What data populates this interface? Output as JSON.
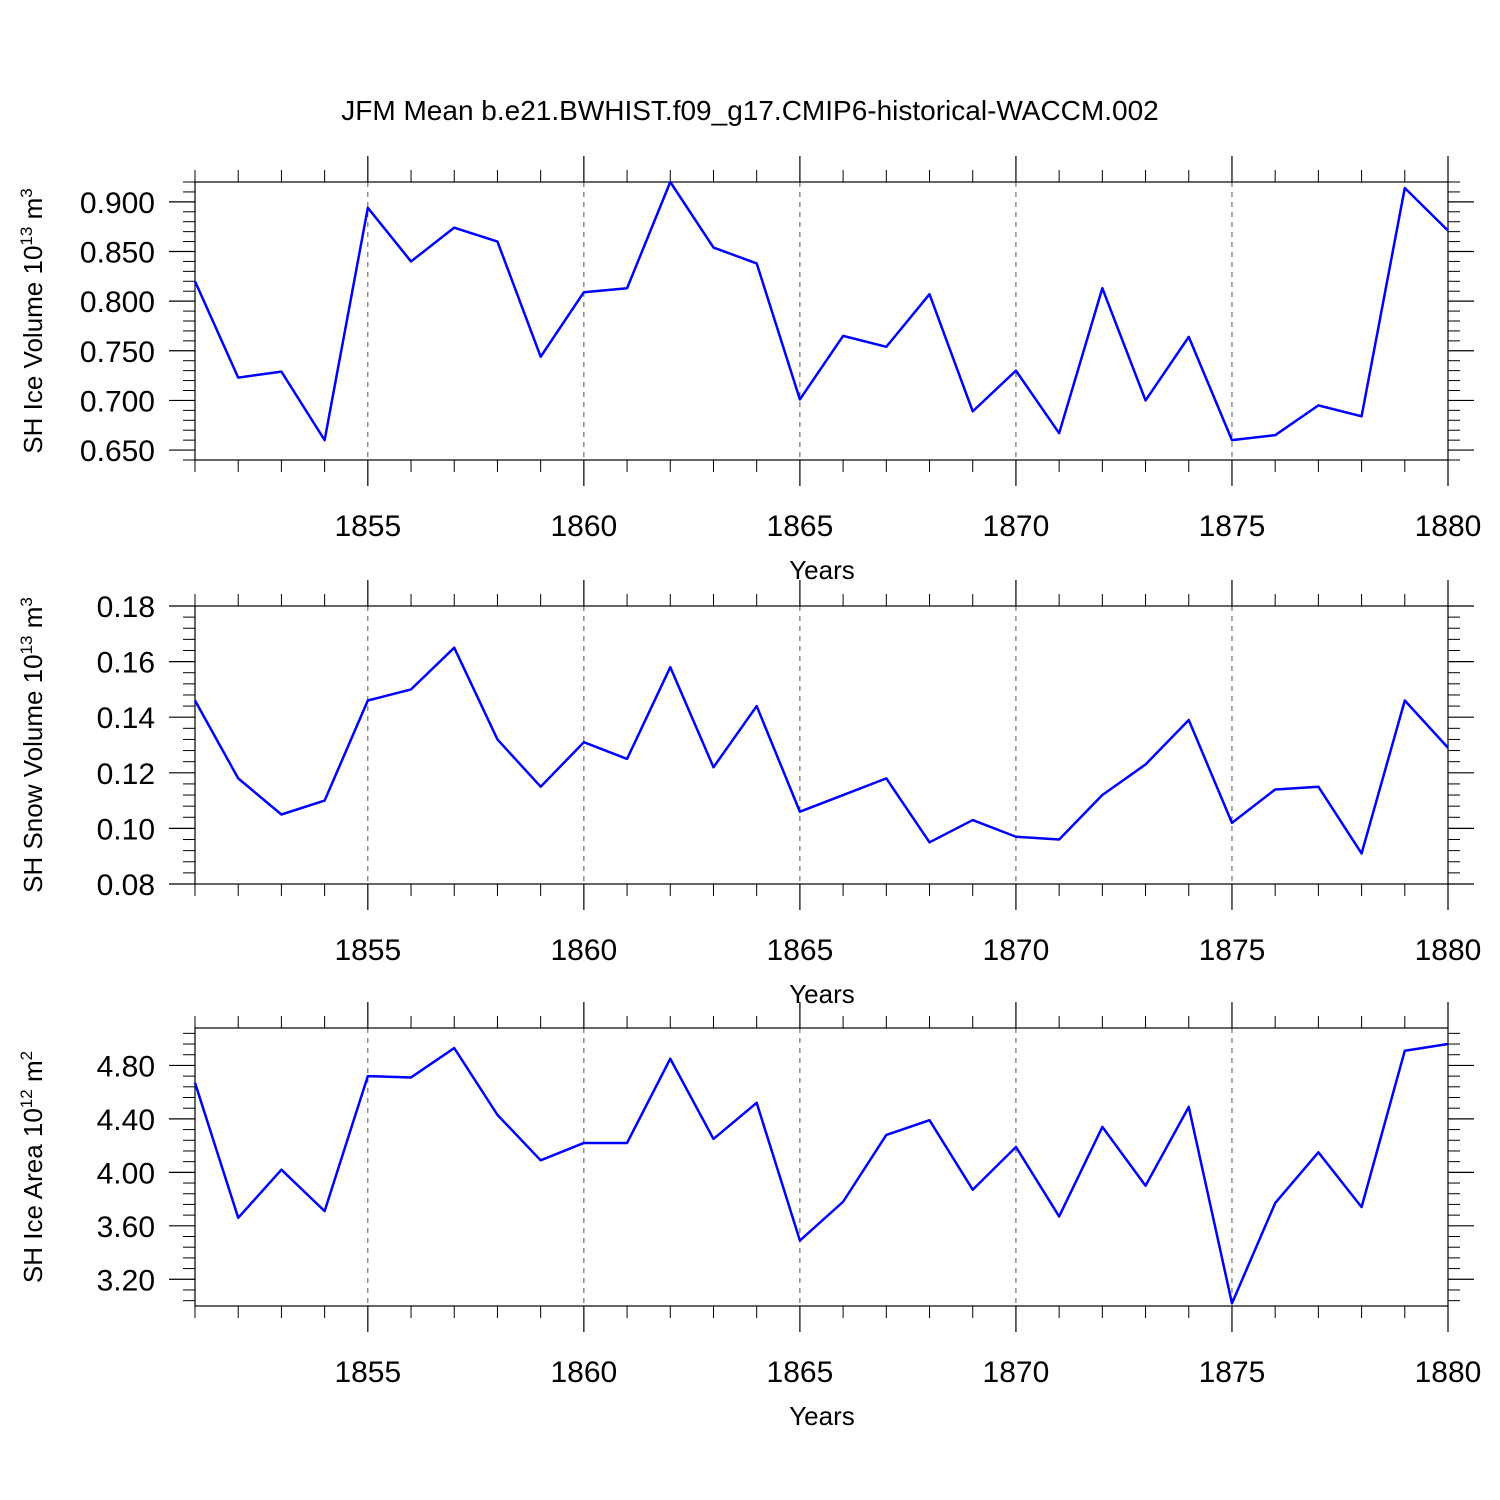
{
  "title": "JFM Mean b.e21.BWHIST.f09_g17.CMIP6-historical-WACCM.002",
  "chart_data": [
    {
      "type": "line",
      "ylabel_main": "SH Ice Volume 10",
      "ylabel_exp": "13",
      "ylabel_unit": " m",
      "ylabel_unit_exp": "3",
      "xlabel": "Years",
      "xlim": [
        1851,
        1880
      ],
      "ylim": [
        0.64,
        0.92
      ],
      "y_ticks": [
        "0.650",
        "0.700",
        "0.750",
        "0.800",
        "0.850",
        "0.900"
      ],
      "y_tick_values": [
        0.65,
        0.7,
        0.75,
        0.8,
        0.85,
        0.9
      ],
      "y_minor_step": 0.01,
      "x_ticks": [
        "1855",
        "1860",
        "1865",
        "1870",
        "1875",
        "1880"
      ],
      "x_tick_values": [
        1855,
        1860,
        1865,
        1870,
        1875,
        1880
      ],
      "grid_x": [
        1855,
        1860,
        1865,
        1870,
        1875
      ],
      "color": "#0000ff",
      "x": [
        1851,
        1852,
        1853,
        1854,
        1855,
        1856,
        1857,
        1858,
        1859,
        1860,
        1861,
        1862,
        1863,
        1864,
        1865,
        1866,
        1867,
        1868,
        1869,
        1870,
        1871,
        1872,
        1873,
        1874,
        1875,
        1876,
        1877,
        1878,
        1879,
        1880
      ],
      "values": [
        0.82,
        0.723,
        0.729,
        0.66,
        0.894,
        0.84,
        0.874,
        0.86,
        0.744,
        0.809,
        0.813,
        0.92,
        0.854,
        0.838,
        0.701,
        0.765,
        0.754,
        0.807,
        0.689,
        0.73,
        0.667,
        0.813,
        0.7,
        0.764,
        0.66,
        0.665,
        0.695,
        0.684,
        0.914,
        0.871
      ]
    },
    {
      "type": "line",
      "ylabel_main": "SH Snow Volume 10",
      "ylabel_exp": "13",
      "ylabel_unit": " m",
      "ylabel_unit_exp": "3",
      "xlabel": "Years",
      "xlim": [
        1851,
        1880
      ],
      "ylim": [
        0.08,
        0.18
      ],
      "y_ticks": [
        "0.08",
        "0.10",
        "0.12",
        "0.14",
        "0.16",
        "0.18"
      ],
      "y_tick_values": [
        0.08,
        0.1,
        0.12,
        0.14,
        0.16,
        0.18
      ],
      "y_minor_step": 0.004,
      "x_ticks": [
        "1855",
        "1860",
        "1865",
        "1870",
        "1875",
        "1880"
      ],
      "x_tick_values": [
        1855,
        1860,
        1865,
        1870,
        1875,
        1880
      ],
      "grid_x": [
        1855,
        1860,
        1865,
        1870,
        1875
      ],
      "color": "#0000ff",
      "x": [
        1851,
        1852,
        1853,
        1854,
        1855,
        1856,
        1857,
        1858,
        1859,
        1860,
        1861,
        1862,
        1863,
        1864,
        1865,
        1866,
        1867,
        1868,
        1869,
        1870,
        1871,
        1872,
        1873,
        1874,
        1875,
        1876,
        1877,
        1878,
        1879,
        1880
      ],
      "values": [
        0.146,
        0.118,
        0.105,
        0.11,
        0.146,
        0.15,
        0.165,
        0.132,
        0.115,
        0.131,
        0.125,
        0.158,
        0.122,
        0.144,
        0.106,
        0.112,
        0.118,
        0.095,
        0.103,
        0.097,
        0.096,
        0.112,
        0.123,
        0.139,
        0.102,
        0.114,
        0.115,
        0.091,
        0.146,
        0.129
      ]
    },
    {
      "type": "line",
      "ylabel_main": "SH Ice Area 10",
      "ylabel_exp": "12",
      "ylabel_unit": " m",
      "ylabel_unit_exp": "2",
      "xlabel": "Years",
      "xlim": [
        1851,
        1880
      ],
      "ylim": [
        3.0,
        5.08
      ],
      "y_ticks": [
        "3.20",
        "3.60",
        "4.00",
        "4.40",
        "4.80"
      ],
      "y_tick_values": [
        3.2,
        3.6,
        4.0,
        4.4,
        4.8
      ],
      "y_minor_step": 0.08,
      "x_ticks": [
        "1855",
        "1860",
        "1865",
        "1870",
        "1875",
        "1880"
      ],
      "x_tick_values": [
        1855,
        1860,
        1865,
        1870,
        1875,
        1880
      ],
      "grid_x": [
        1855,
        1860,
        1865,
        1870,
        1875
      ],
      "color": "#0000ff",
      "x": [
        1851,
        1852,
        1853,
        1854,
        1855,
        1856,
        1857,
        1858,
        1859,
        1860,
        1861,
        1862,
        1863,
        1864,
        1865,
        1866,
        1867,
        1868,
        1869,
        1870,
        1871,
        1872,
        1873,
        1874,
        1875,
        1876,
        1877,
        1878,
        1879,
        1880
      ],
      "values": [
        4.67,
        3.66,
        4.02,
        3.71,
        4.72,
        4.71,
        4.93,
        4.43,
        4.09,
        4.22,
        4.22,
        4.85,
        4.25,
        4.52,
        3.49,
        3.78,
        4.28,
        4.39,
        3.87,
        4.19,
        3.67,
        4.34,
        3.9,
        4.49,
        3.02,
        3.77,
        4.15,
        3.74,
        4.91,
        4.96
      ]
    }
  ]
}
